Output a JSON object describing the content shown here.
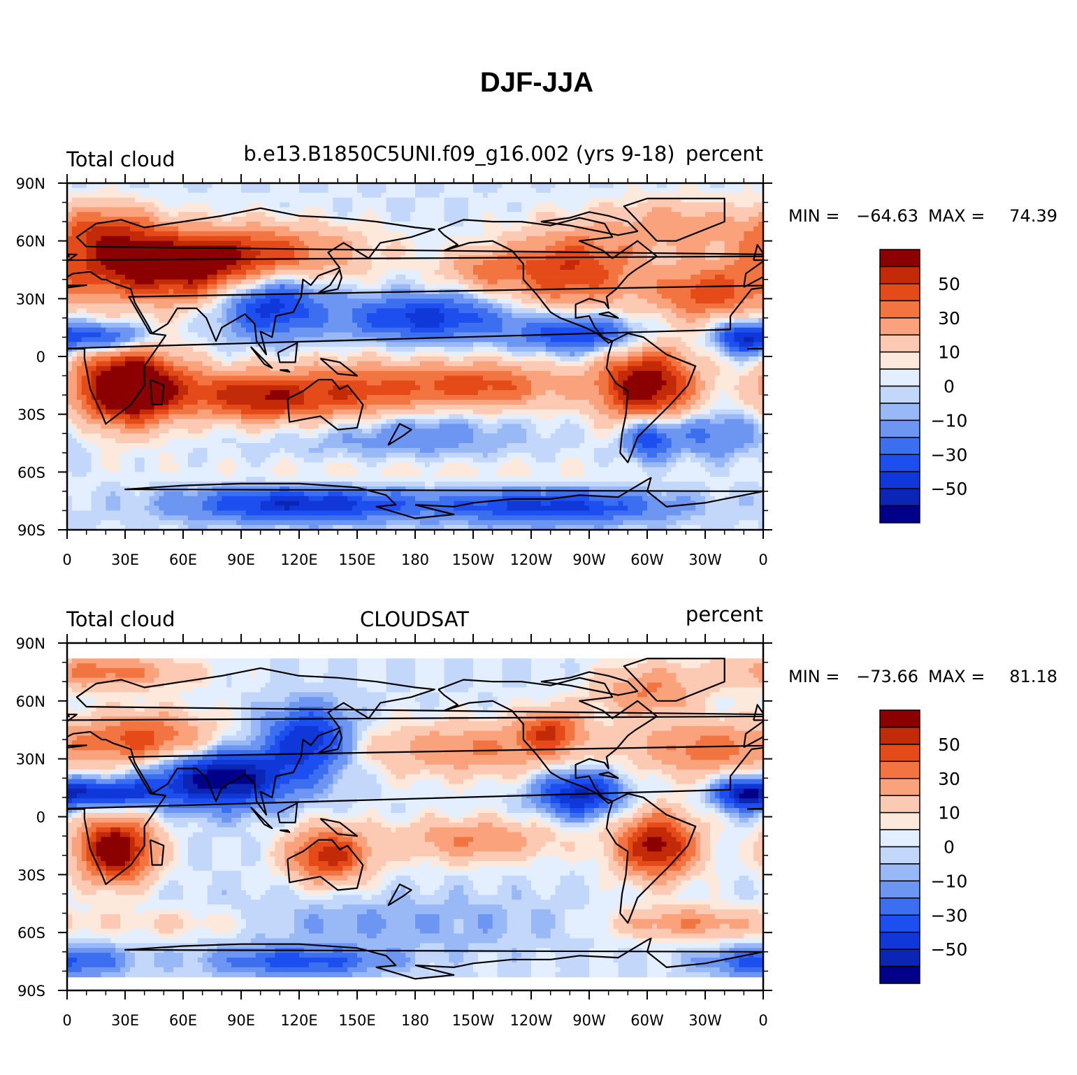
{
  "title": "DJF-JJA",
  "palette": [
    "#00008b",
    "#0b26b4",
    "#1038d8",
    "#1d4ff0",
    "#3c6ef0",
    "#6c96f2",
    "#99b8f6",
    "#c3d7fb",
    "#e3efff",
    "#fde9dc",
    "#fcc9b3",
    "#f9a27c",
    "#f27440",
    "#e54b18",
    "#c22a08",
    "#8b0000"
  ],
  "axes": {
    "x_ticks": [
      "0",
      "30E",
      "60E",
      "90E",
      "120E",
      "150E",
      "180",
      "150W",
      "120W",
      "90W",
      "60W",
      "30W",
      "0"
    ],
    "y_ticks": [
      "90N",
      "60N",
      "30N",
      "0",
      "30S",
      "60S",
      "90S"
    ]
  },
  "chart_data": [
    {
      "type": "heatmap",
      "projection": "cylindrical-equidistant",
      "left_string": "Total cloud",
      "center_string": "b.e13.B1850C5UNI.f09_g16.002 (yrs 9-18)",
      "right_string": "percent",
      "stats": {
        "min_label": "MIN = ",
        "min": "−64.63",
        "max_label": "MAX = ",
        "max": "74.39"
      },
      "xlim": [
        0,
        360
      ],
      "ylim": [
        -90,
        90
      ],
      "lat_coverage": [
        -90,
        90
      ],
      "colorbar": {
        "levels": [
          -70,
          -60,
          -50,
          -40,
          -30,
          -20,
          -10,
          -5,
          0,
          5,
          10,
          20,
          30,
          40,
          50,
          60
        ],
        "labels": [
          "50",
          "30",
          "10",
          "0",
          "−10",
          "−30",
          "−50"
        ]
      },
      "blobs": [
        {
          "lon": 30,
          "lat": -15,
          "sx": 18,
          "sy": 15,
          "v": 70
        },
        {
          "lon": 55,
          "lat": -18,
          "sx": 30,
          "sy": 10,
          "v": 35
        },
        {
          "lon": 100,
          "lat": -22,
          "sx": 18,
          "sy": 9,
          "v": 40
        },
        {
          "lon": 140,
          "lat": -20,
          "sx": 25,
          "sy": 12,
          "v": 40
        },
        {
          "lon": 210,
          "lat": -15,
          "sx": 35,
          "sy": 9,
          "v": 45
        },
        {
          "lon": 300,
          "lat": -15,
          "sx": 18,
          "sy": 14,
          "v": 70
        },
        {
          "lon": 300,
          "lat": -42,
          "sx": 8,
          "sy": 8,
          "v": -40
        },
        {
          "lon": 50,
          "lat": 45,
          "sx": 40,
          "sy": 12,
          "v": 65
        },
        {
          "lon": 100,
          "lat": 55,
          "sx": 40,
          "sy": 10,
          "v": 35
        },
        {
          "lon": 20,
          "lat": 65,
          "sx": 20,
          "sy": 10,
          "v": 40
        },
        {
          "lon": 260,
          "lat": 45,
          "sx": 25,
          "sy": 15,
          "v": 50
        },
        {
          "lon": 330,
          "lat": 32,
          "sx": 20,
          "sy": 10,
          "v": 40
        },
        {
          "lon": 315,
          "lat": 68,
          "sx": 25,
          "sy": 10,
          "v": 25
        },
        {
          "lon": 215,
          "lat": 45,
          "sx": 15,
          "sy": 7,
          "v": 25
        },
        {
          "lon": 105,
          "lat": 28,
          "sx": 18,
          "sy": 12,
          "v": -50
        },
        {
          "lon": 185,
          "lat": 20,
          "sx": 30,
          "sy": 8,
          "v": -45
        },
        {
          "lon": 265,
          "lat": 12,
          "sx": 22,
          "sy": 7,
          "v": -45
        },
        {
          "lon": 350,
          "lat": 10,
          "sx": 10,
          "sy": 6,
          "v": -50
        },
        {
          "lon": 20,
          "lat": 10,
          "sx": 15,
          "sy": 5,
          "v": -45
        },
        {
          "lon": 120,
          "lat": -77,
          "sx": 40,
          "sy": 6,
          "v": -50
        },
        {
          "lon": 250,
          "lat": -78,
          "sx": 40,
          "sy": 6,
          "v": -45
        },
        {
          "lon": 170,
          "lat": -40,
          "sx": 40,
          "sy": 8,
          "v": -20
        },
        {
          "lon": 330,
          "lat": -40,
          "sx": 20,
          "sy": 8,
          "v": -25
        },
        {
          "lon": 180,
          "lat": -60,
          "sx": 90,
          "sy": 5,
          "v": 8
        }
      ]
    },
    {
      "type": "heatmap",
      "projection": "cylindrical-equidistant",
      "left_string": "Total cloud",
      "center_string": "CLOUDSAT",
      "right_string": "percent",
      "stats": {
        "min_label": "MIN = ",
        "min": "−73.66",
        "max_label": "MAX = ",
        "max": "81.18"
      },
      "xlim": [
        0,
        360
      ],
      "ylim": [
        -90,
        90
      ],
      "lat_coverage": [
        -82,
        82
      ],
      "colorbar": {
        "levels": [
          -70,
          -60,
          -50,
          -40,
          -30,
          -20,
          -10,
          -5,
          0,
          5,
          10,
          20,
          30,
          40,
          50,
          60
        ],
        "labels": [
          "50",
          "30",
          "10",
          "0",
          "−10",
          "−30",
          "−50"
        ]
      },
      "blobs": [
        {
          "lon": 25,
          "lat": -17,
          "sx": 14,
          "sy": 12,
          "v": 75
        },
        {
          "lon": 135,
          "lat": -20,
          "sx": 15,
          "sy": 10,
          "v": 55
        },
        {
          "lon": 305,
          "lat": -15,
          "sx": 15,
          "sy": 12,
          "v": 65
        },
        {
          "lon": 210,
          "lat": -12,
          "sx": 30,
          "sy": 8,
          "v": 30
        },
        {
          "lon": 80,
          "lat": 20,
          "sx": 25,
          "sy": 10,
          "v": -70
        },
        {
          "lon": 20,
          "lat": 12,
          "sx": 20,
          "sy": 5,
          "v": -50
        },
        {
          "lon": 265,
          "lat": 12,
          "sx": 15,
          "sy": 8,
          "v": -55
        },
        {
          "lon": 350,
          "lat": 12,
          "sx": 10,
          "sy": 6,
          "v": -50
        },
        {
          "lon": 125,
          "lat": 40,
          "sx": 15,
          "sy": 12,
          "v": -50
        },
        {
          "lon": 40,
          "lat": 40,
          "sx": 25,
          "sy": 10,
          "v": 45
        },
        {
          "lon": 210,
          "lat": 35,
          "sx": 40,
          "sy": 10,
          "v": 30
        },
        {
          "lon": 330,
          "lat": 35,
          "sx": 25,
          "sy": 10,
          "v": 35
        },
        {
          "lon": 250,
          "lat": 45,
          "sx": 12,
          "sy": 8,
          "v": 40
        },
        {
          "lon": 20,
          "lat": 75,
          "sx": 30,
          "sy": 6,
          "v": 35
        },
        {
          "lon": 300,
          "lat": 65,
          "sx": 20,
          "sy": 10,
          "v": 30
        },
        {
          "lon": 160,
          "lat": -55,
          "sx": 80,
          "sy": 10,
          "v": -10
        },
        {
          "lon": 320,
          "lat": -55,
          "sx": 30,
          "sy": 6,
          "v": 30
        },
        {
          "lon": 60,
          "lat": -55,
          "sx": 30,
          "sy": 6,
          "v": 15
        },
        {
          "lon": 120,
          "lat": -75,
          "sx": 30,
          "sy": 5,
          "v": -35
        },
        {
          "lon": 360,
          "lat": -75,
          "sx": 20,
          "sy": 5,
          "v": -35
        }
      ]
    }
  ]
}
